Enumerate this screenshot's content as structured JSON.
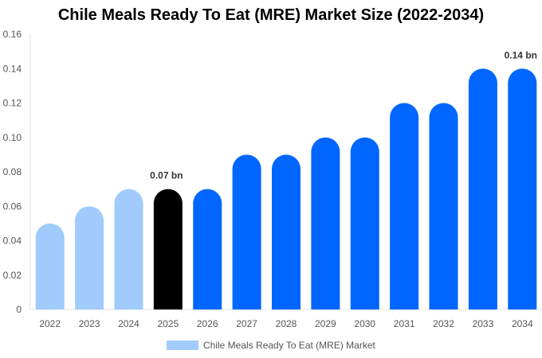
{
  "chart_data": {
    "type": "bar",
    "title": "Chile Meals Ready To Eat (MRE) Market Size (2022-2034)",
    "xlabel": "",
    "ylabel": "",
    "categories": [
      "2022",
      "2023",
      "2024",
      "2025",
      "2026",
      "2027",
      "2028",
      "2029",
      "2030",
      "2031",
      "2032",
      "2033",
      "2034"
    ],
    "series": [
      {
        "name": "Chile Meals Ready To Eat (MRE) Market",
        "values": [
          0.05,
          0.06,
          0.07,
          0.07,
          0.07,
          0.09,
          0.09,
          0.1,
          0.1,
          0.12,
          0.12,
          0.14,
          0.14
        ]
      }
    ],
    "ylim": [
      0,
      0.16
    ],
    "yticks": [
      "0",
      "0.02",
      "0.04",
      "0.06",
      "0.08",
      "0.10",
      "0.12",
      "0.14",
      "0.16"
    ],
    "data_labels": {
      "3": "0.07 bn",
      "12": "0.14 bn"
    },
    "colors": {
      "historical": "#a0cbfc",
      "current": "#000000",
      "forecast": "#0066ff"
    },
    "current_index": 3,
    "grid": false,
    "legend_position": "bottom-center"
  }
}
